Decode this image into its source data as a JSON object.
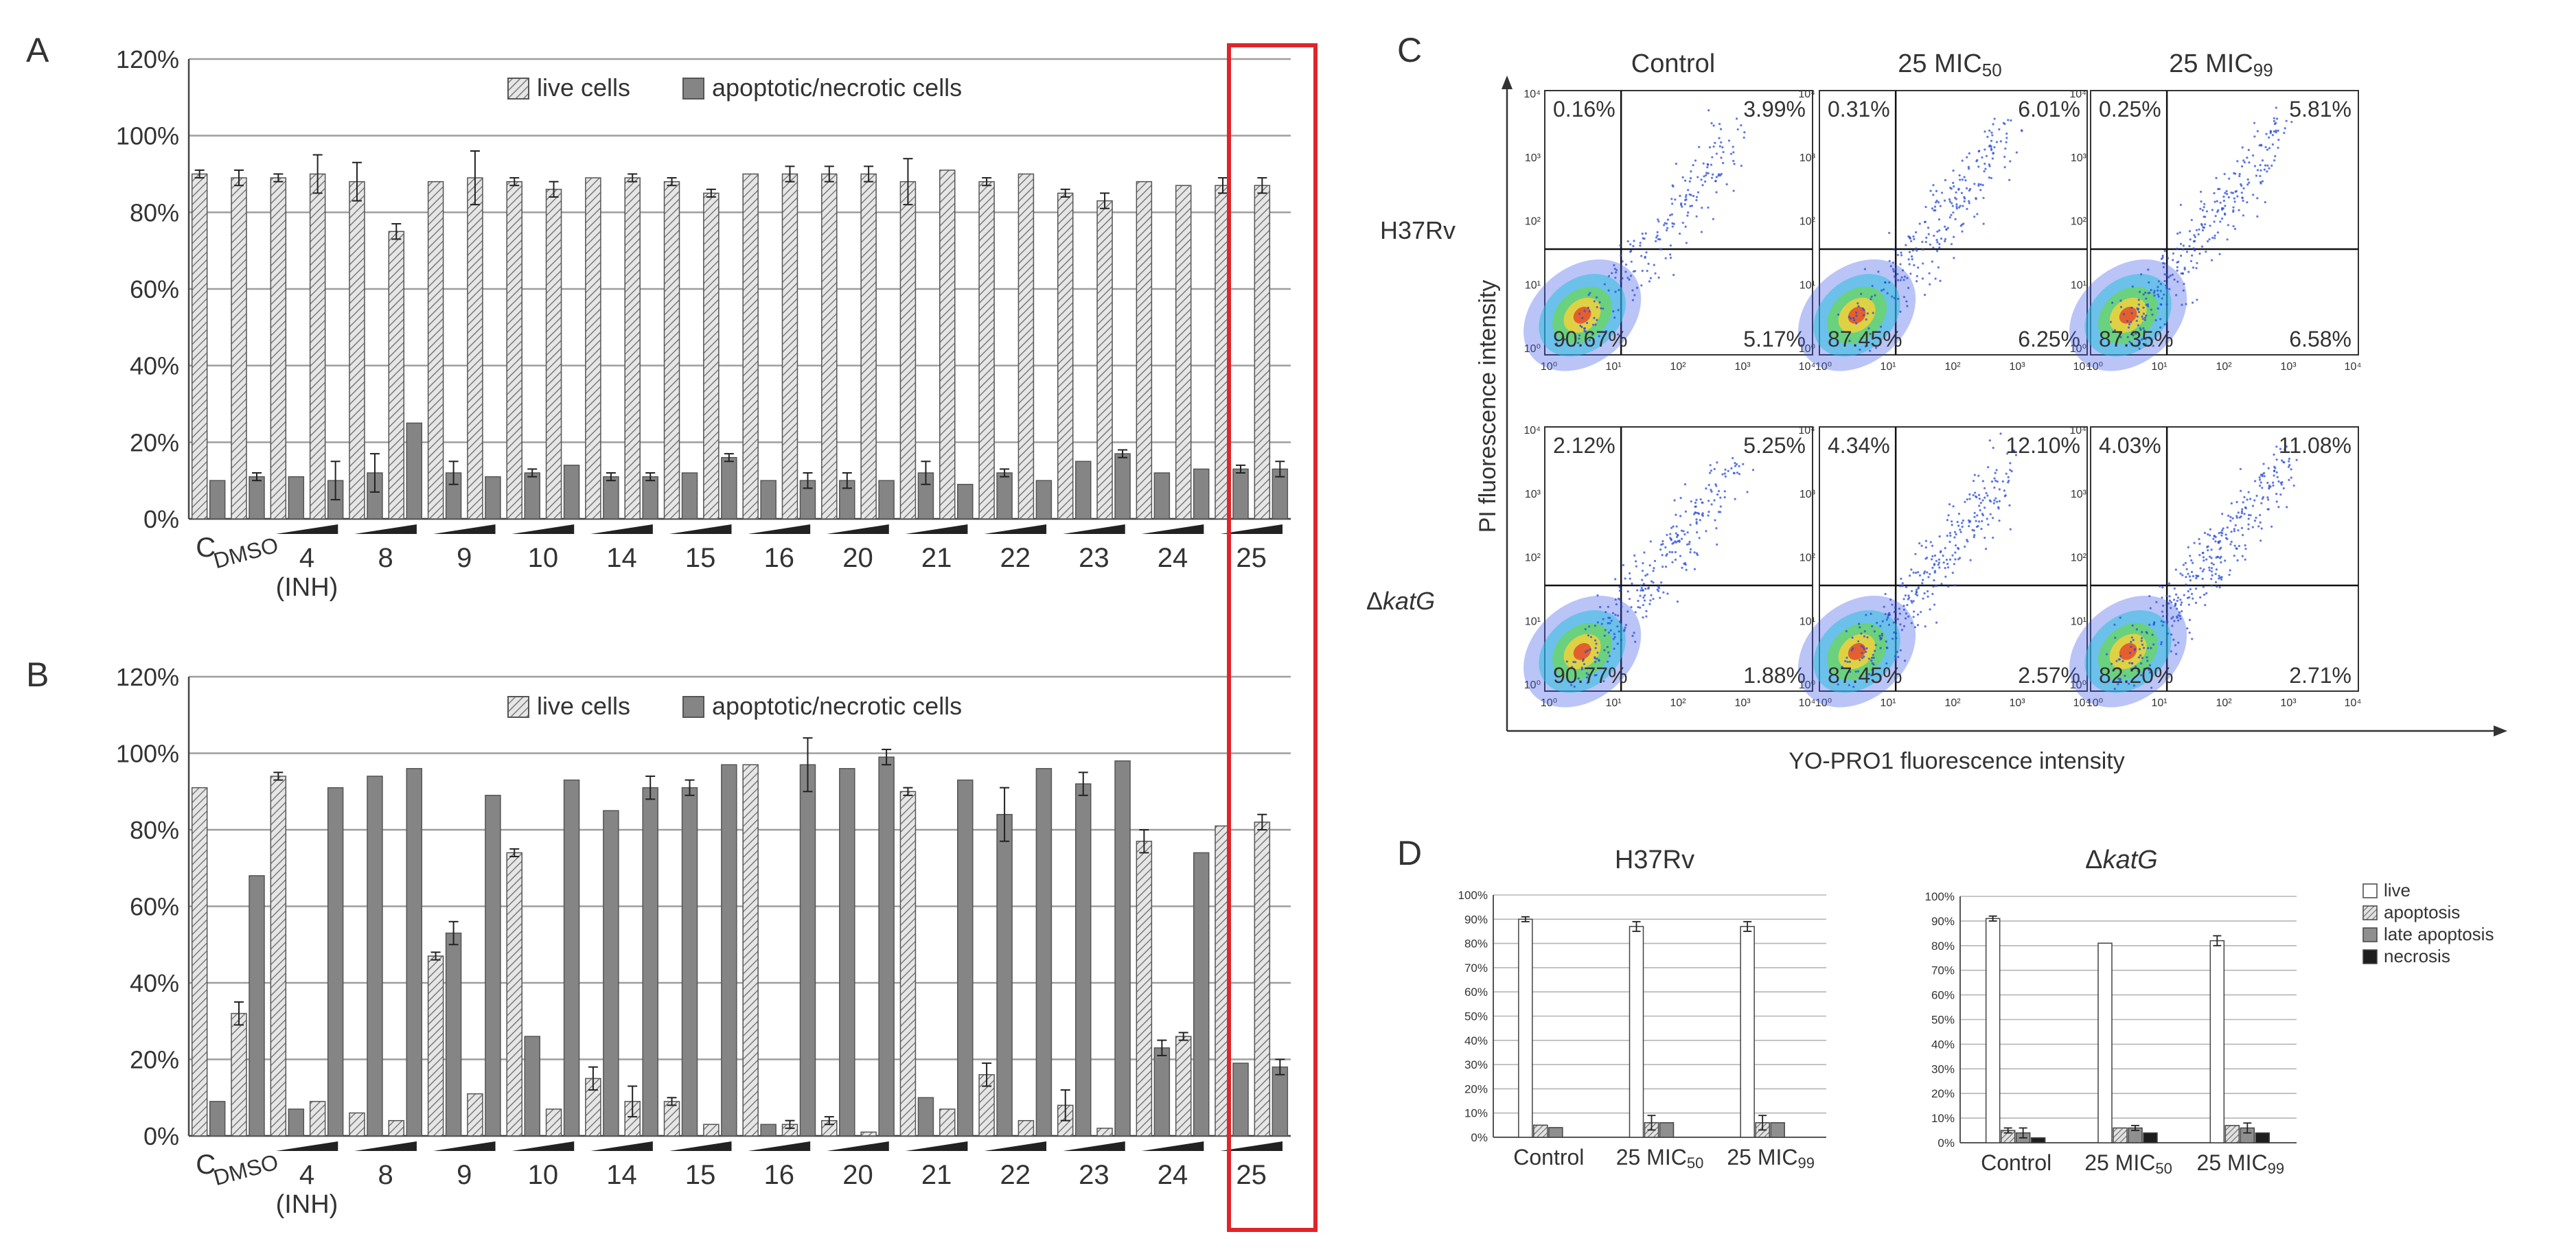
{
  "panels": {
    "a": "A",
    "b": "B",
    "c": "C",
    "d": "D"
  },
  "legend": {
    "live": "live cells",
    "apop": "apoptotic/necrotic cells"
  },
  "yticks_bar": [
    "0%",
    "20%",
    "40%",
    "60%",
    "80%",
    "100%",
    "120%"
  ],
  "x_groups": [
    {
      "label": "4",
      "sub": "(INH)"
    },
    {
      "label": "8"
    },
    {
      "label": "9"
    },
    {
      "label": "10"
    },
    {
      "label": "14"
    },
    {
      "label": "15"
    },
    {
      "label": "16"
    },
    {
      "label": "20"
    },
    {
      "label": "21"
    },
    {
      "label": "22"
    },
    {
      "label": "23"
    },
    {
      "label": "24"
    },
    {
      "label": "25"
    }
  ],
  "x_c": "C",
  "x_dmso": "DMSO",
  "colors": {
    "live": "#d4d4d4",
    "apop": "#858585",
    "grid": "#a0a0a0",
    "highlight": "#e0242b",
    "flow": "#2a4bd8"
  },
  "chart_data": [
    {
      "type": "bar",
      "panel": "A",
      "ylim": [
        0,
        120
      ],
      "categories": [
        "C",
        "DMSO",
        "4a",
        "4b",
        "8a",
        "8b",
        "9a",
        "9b",
        "10a",
        "10b",
        "14a",
        "14b",
        "15a",
        "15b",
        "16a",
        "16b",
        "20a",
        "20b",
        "21a",
        "21b",
        "22a",
        "22b",
        "23a",
        "23b",
        "24a",
        "24b",
        "25a",
        "25b"
      ],
      "series": [
        {
          "name": "live cells",
          "values": [
            90,
            89,
            89,
            90,
            88,
            75,
            88,
            89,
            88,
            86,
            89,
            89,
            88,
            85,
            90,
            90,
            90,
            90,
            88,
            91,
            88,
            90,
            85,
            83,
            88,
            87,
            87,
            87
          ],
          "errors": [
            1,
            2,
            1,
            5,
            5,
            2,
            0,
            7,
            1,
            2,
            0,
            1,
            1,
            1,
            0,
            2,
            2,
            2,
            6,
            0,
            1,
            0,
            1,
            2,
            0,
            0,
            2,
            2
          ]
        },
        {
          "name": "apoptotic/necrotic cells",
          "values": [
            10,
            11,
            11,
            10,
            12,
            25,
            12,
            11,
            12,
            14,
            11,
            11,
            12,
            16,
            10,
            10,
            10,
            10,
            12,
            9,
            12,
            10,
            15,
            17,
            12,
            13,
            13,
            13
          ],
          "errors": [
            0,
            1,
            0,
            5,
            5,
            0,
            3,
            0,
            1,
            0,
            1,
            1,
            0,
            1,
            0,
            2,
            2,
            0,
            3,
            0,
            1,
            0,
            0,
            1,
            0,
            0,
            1,
            2
          ]
        }
      ]
    },
    {
      "type": "bar",
      "panel": "B",
      "ylim": [
        0,
        120
      ],
      "categories": [
        "C",
        "DMSO",
        "4a",
        "4b",
        "8a",
        "8b",
        "9a",
        "9b",
        "10a",
        "10b",
        "14a",
        "14b",
        "15a",
        "15b",
        "16a",
        "16b",
        "20a",
        "20b",
        "21a",
        "21b",
        "22a",
        "22b",
        "23a",
        "23b",
        "24a",
        "24b",
        "25a",
        "25b"
      ],
      "series": [
        {
          "name": "live cells",
          "values": [
            91,
            32,
            94,
            9,
            6,
            4,
            47,
            11,
            74,
            7,
            15,
            9,
            9,
            3,
            97,
            3,
            4,
            1,
            90,
            7,
            16,
            4,
            8,
            2,
            77,
            26,
            81,
            82
          ],
          "errors": [
            0,
            3,
            1,
            0,
            0,
            0,
            1,
            0,
            1,
            0,
            3,
            4,
            1,
            0,
            0,
            1,
            1,
            0,
            1,
            0,
            3,
            0,
            4,
            0,
            3,
            1,
            0,
            2
          ]
        },
        {
          "name": "apoptotic/necrotic cells",
          "values": [
            9,
            68,
            7,
            91,
            94,
            96,
            53,
            89,
            26,
            93,
            85,
            91,
            91,
            97,
            3,
            97,
            96,
            99,
            10,
            93,
            84,
            96,
            92,
            98,
            23,
            74,
            19,
            18
          ],
          "errors": [
            0,
            0,
            0,
            0,
            0,
            0,
            3,
            0,
            0,
            0,
            0,
            3,
            2,
            0,
            0,
            7,
            0,
            2,
            0,
            0,
            7,
            0,
            3,
            0,
            2,
            0,
            0,
            2
          ]
        }
      ]
    },
    {
      "type": "scatter",
      "panel": "C",
      "xlabel": "YO-PRO1 fluorescence intensity",
      "ylabel": "PI fluorescence intensity",
      "columns": [
        "Control",
        "25 MIC50",
        "25 MIC99"
      ],
      "rows": [
        "H37Rv",
        "ΔkatG"
      ],
      "quadrants": [
        [
          [
            "0.16%",
            "3.99%",
            "90.67%",
            "5.17%"
          ],
          [
            "0.31%",
            "6.01%",
            "87.45%",
            "6.25%"
          ],
          [
            "0.25%",
            "5.81%",
            "87.35%",
            "6.58%"
          ]
        ],
        [
          [
            "2.12%",
            "5.25%",
            "90.77%",
            "1.88%"
          ],
          [
            "4.34%",
            "12.10%",
            "87.45%",
            "2.57%"
          ],
          [
            "4.03%",
            "11.08%",
            "82.20%",
            "2.71%"
          ]
        ]
      ]
    },
    {
      "type": "bar",
      "panel": "D",
      "ylim": [
        0,
        100
      ],
      "legend": [
        "live",
        "apoptosis",
        "late apoptosis",
        "necrosis"
      ],
      "subcharts": [
        {
          "title": "H37Rv",
          "categories": [
            "Control",
            "25 MIC50",
            "25 MIC99"
          ],
          "series": [
            {
              "name": "live",
              "values": [
                90,
                87,
                87
              ],
              "errors": [
                1,
                2,
                2
              ]
            },
            {
              "name": "apoptosis",
              "values": [
                5,
                6,
                6
              ],
              "errors": [
                0,
                3,
                3
              ]
            },
            {
              "name": "late apoptosis",
              "values": [
                4,
                6,
                6
              ],
              "errors": [
                0,
                0,
                0
              ]
            },
            {
              "name": "necrosis",
              "values": [
                0,
                0,
                0
              ],
              "errors": [
                0,
                0,
                0
              ]
            }
          ]
        },
        {
          "title": "ΔkatG",
          "categories": [
            "Control",
            "25 MIC50",
            "25 MIC99"
          ],
          "series": [
            {
              "name": "live",
              "values": [
                91,
                81,
                82
              ],
              "errors": [
                1,
                0,
                2
              ]
            },
            {
              "name": "apoptosis",
              "values": [
                5,
                6,
                7
              ],
              "errors": [
                1,
                0,
                0
              ]
            },
            {
              "name": "late apoptosis",
              "values": [
                4,
                6,
                6
              ],
              "errors": [
                2,
                1,
                2
              ]
            },
            {
              "name": "necrosis",
              "values": [
                2,
                4,
                4
              ],
              "errors": [
                0,
                0,
                0
              ]
            }
          ]
        }
      ]
    }
  ],
  "d_yticks": [
    "0%",
    "10%",
    "20%",
    "30%",
    "40%",
    "50%",
    "60%",
    "70%",
    "80%",
    "90%",
    "100%"
  ],
  "d_x": {
    "c1": "Control",
    "m50": "25 MIC",
    "m99": "25 MIC",
    "s50": "50",
    "s99": "99"
  },
  "d_legend": [
    "live",
    "apoptosis",
    "late apoptosis",
    "necrosis"
  ],
  "d_titles": {
    "h": "H37Rv",
    "k_delta": "Δ",
    "k_gene": "katG"
  },
  "c_titles": {
    "c1": "Control",
    "m50": "25 MIC",
    "m99": "25 MIC",
    "s50": "50",
    "s99": "99"
  },
  "c_rows": {
    "h": "H37Rv",
    "k_delta": "Δ",
    "k_gene": "katG"
  },
  "c_axes": {
    "x": "YO-PRO1 fluorescence intensity",
    "y": "PI fluorescence intensity"
  },
  "c_quad_vals": [
    [
      "0.16%",
      "3.99%",
      "90.67%",
      "5.17%"
    ],
    [
      "0.31%",
      "6.01%",
      "87.45%",
      "6.25%"
    ],
    [
      "0.25%",
      "5.81%",
      "87.35%",
      "6.58%"
    ],
    [
      "2.12%",
      "5.25%",
      "90.77%",
      "1.88%"
    ],
    [
      "4.34%",
      "12.10%",
      "87.45%",
      "2.57%"
    ],
    [
      "4.03%",
      "11.08%",
      "82.20%",
      "2.71%"
    ]
  ],
  "c_ticks": [
    "10⁰",
    "10¹",
    "10²",
    "10³",
    "10⁴"
  ]
}
